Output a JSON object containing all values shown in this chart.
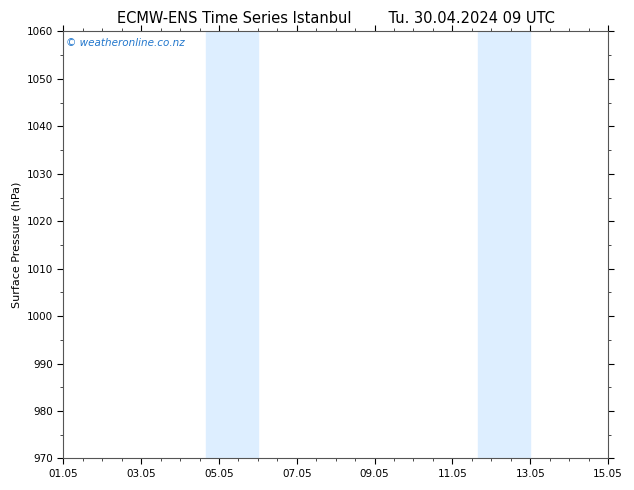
{
  "title_left": "ECMW-ENS Time Series Istanbul",
  "title_right": "Tu. 30.04.2024 09 UTC",
  "ylabel": "Surface Pressure (hPa)",
  "ylim": [
    970,
    1060
  ],
  "yticks": [
    970,
    980,
    990,
    1000,
    1010,
    1020,
    1030,
    1040,
    1050,
    1060
  ],
  "xlim_start": 0,
  "xlim_end": 14,
  "xtick_labels": [
    "01.05",
    "03.05",
    "05.05",
    "07.05",
    "09.05",
    "11.05",
    "13.05",
    "15.05"
  ],
  "xtick_positions": [
    0,
    2,
    4,
    6,
    8,
    10,
    12,
    14
  ],
  "shaded_bands": [
    {
      "x_start": 3.67,
      "x_end": 5.0
    },
    {
      "x_start": 10.67,
      "x_end": 12.0
    }
  ],
  "shade_color": "#ddeeff",
  "background_color": "#ffffff",
  "watermark_text": "© weatheronline.co.nz",
  "watermark_color": "#2277cc",
  "title_fontsize": 10.5,
  "tick_fontsize": 7.5,
  "ylabel_fontsize": 8,
  "spine_color": "#555555"
}
